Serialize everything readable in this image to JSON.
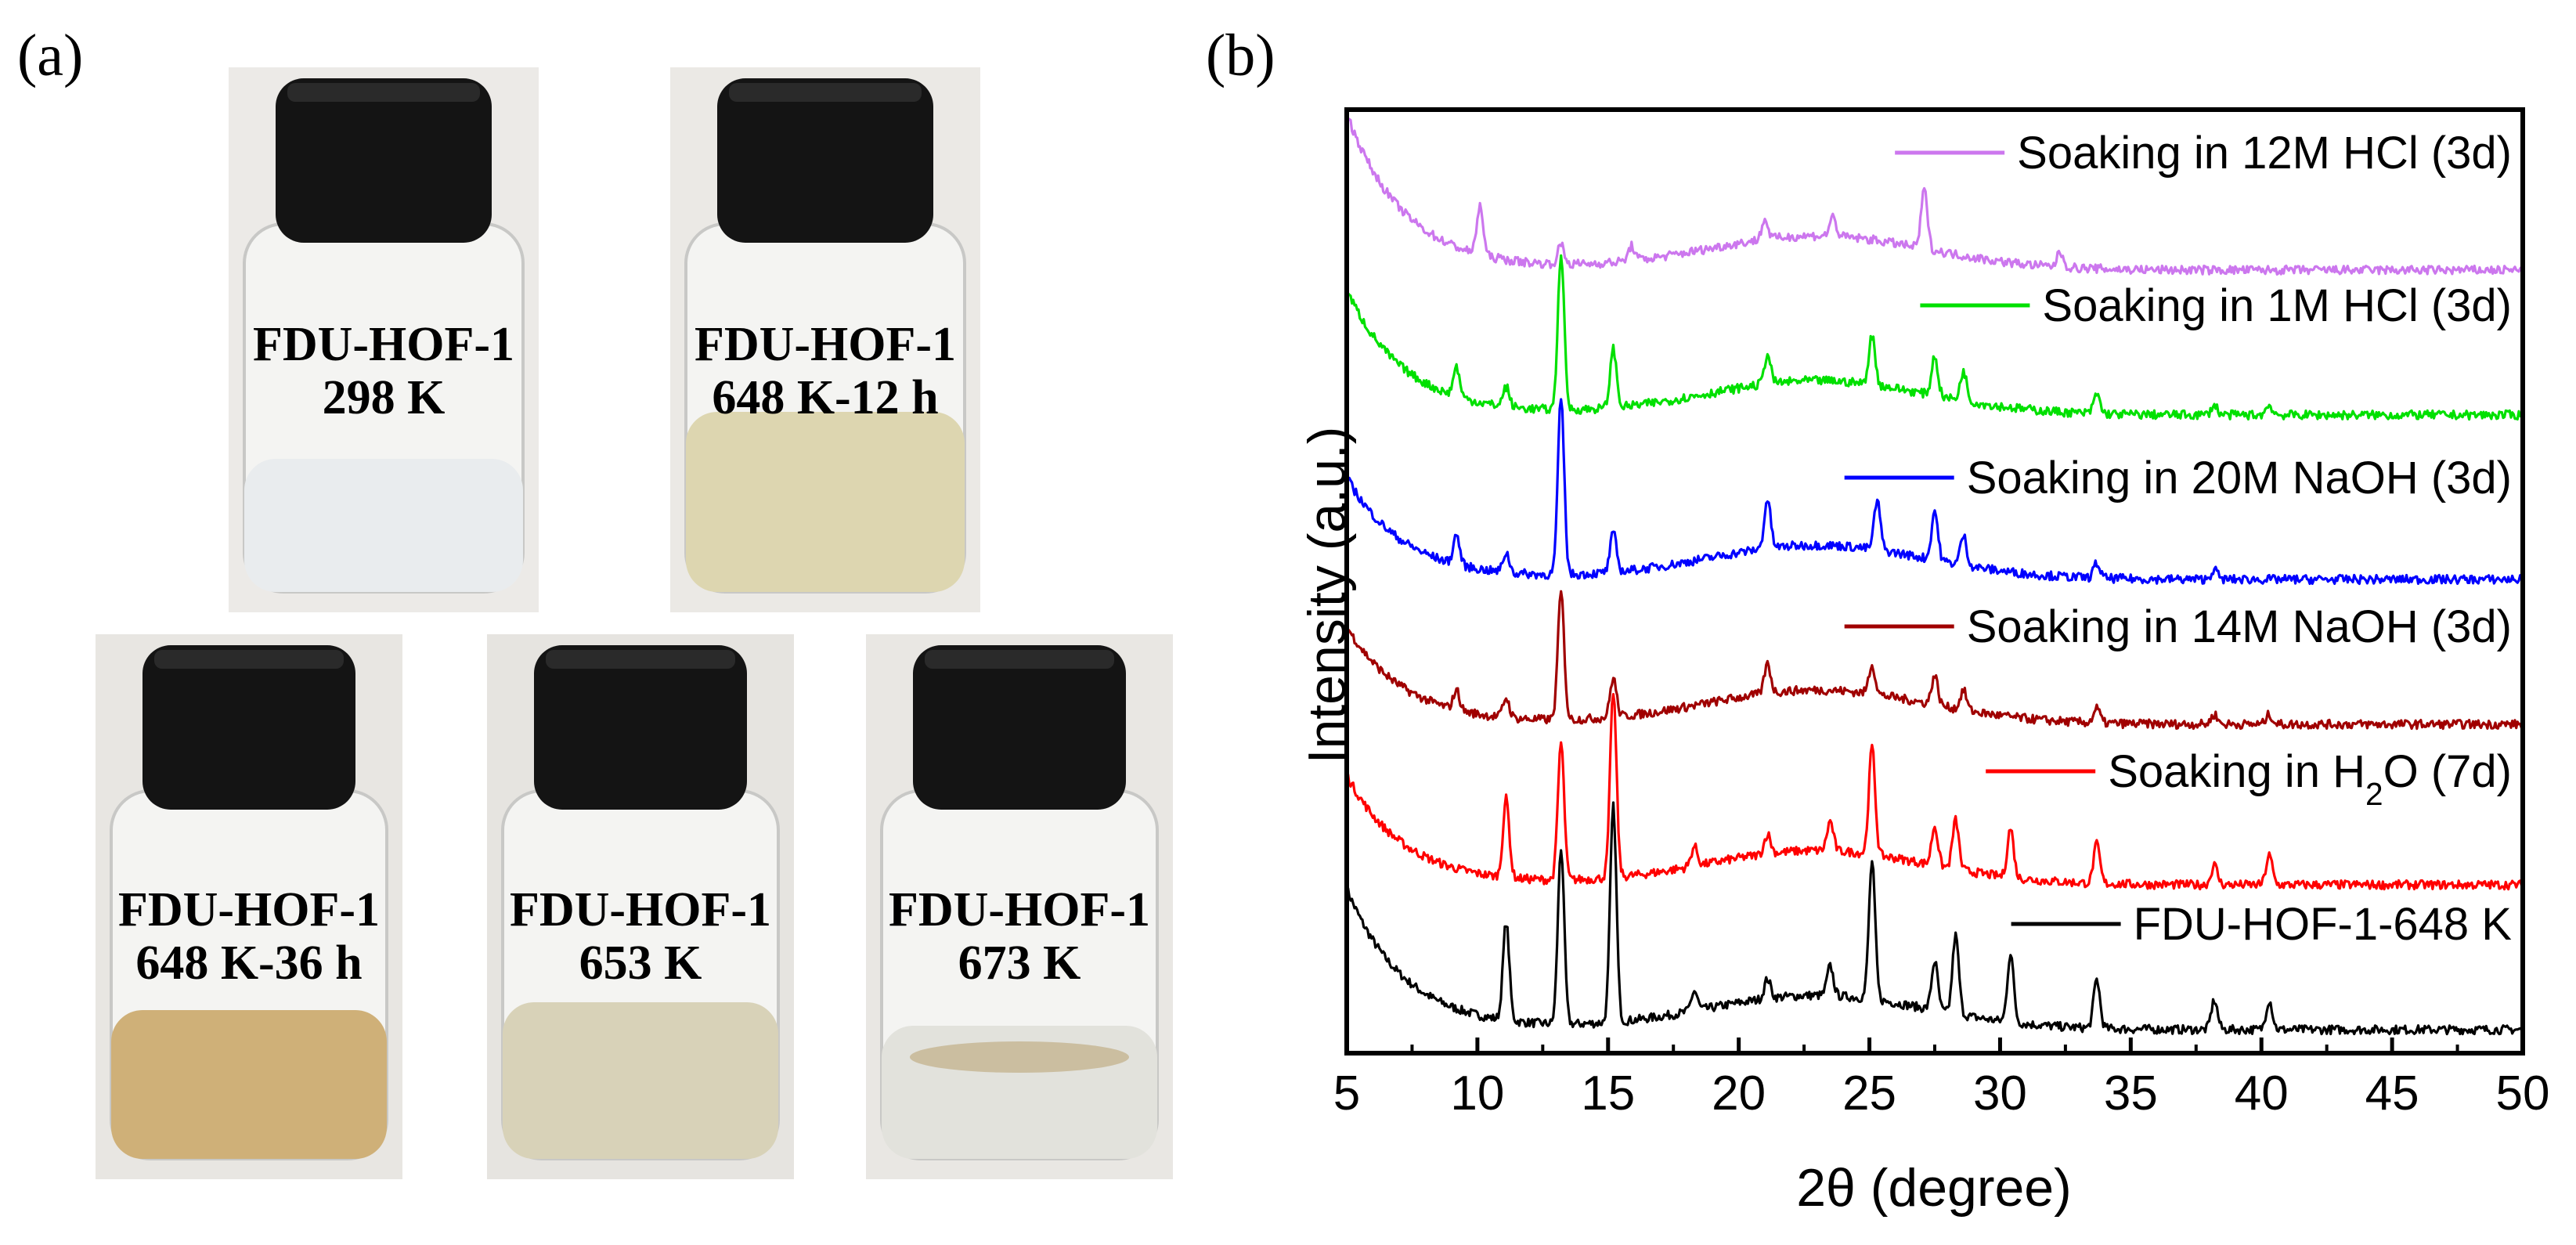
{
  "panels": {
    "a": "(a)",
    "b": "(b)"
  },
  "vials": [
    {
      "line1": "FDU-HOF-1",
      "line2": "298 K",
      "liquid": "#e9ecee",
      "bg": "#eceae7"
    },
    {
      "line1": "FDU-HOF-1",
      "line2": "648 K-12 h",
      "liquid": "#ddd6b0",
      "bg": "#ebe9e5"
    },
    {
      "line1": "FDU-HOF-1",
      "line2": "648 K-36 h",
      "liquid": "#cfb078",
      "bg": "#e8e6e2"
    },
    {
      "line1": "FDU-HOF-1",
      "line2": "653 K",
      "liquid": "#d8d2b8",
      "bg": "#e6e4e0"
    },
    {
      "line1": "FDU-HOF-1",
      "line2": "673 K",
      "liquid": "#e2e2dc",
      "bg": "#e9e7e3"
    }
  ],
  "chart_data": {
    "type": "line",
    "xlabel": "2θ (degree)",
    "ylabel": "Intensity (a.u.)",
    "xlim": [
      5,
      50
    ],
    "xticks": [
      5,
      10,
      15,
      20,
      25,
      30,
      35,
      40,
      45,
      50
    ],
    "grid": false,
    "legend_placement": "inline-right",
    "series": [
      {
        "name": "FDU-HOF-1-648 K",
        "name_html": "FDU-HOF-1-648 K",
        "color": "#000000",
        "peaks": [
          [
            11.1,
            1.0
          ],
          [
            13.2,
            1.8
          ],
          [
            15.2,
            2.2
          ],
          [
            18.3,
            0.2
          ],
          [
            21.1,
            0.2
          ],
          [
            23.5,
            0.3
          ],
          [
            25.1,
            1.4
          ],
          [
            27.5,
            0.5
          ],
          [
            28.3,
            0.8
          ],
          [
            30.4,
            0.7
          ],
          [
            33.7,
            0.5
          ],
          [
            38.2,
            0.3
          ],
          [
            40.3,
            0.3
          ]
        ]
      },
      {
        "name": "Soaking in H2O (7d)",
        "name_html": "Soaking in H<tspan baseline-shift='sub' font-size='70%'>2</tspan>O (7d)",
        "color": "#ff0000",
        "peaks": [
          [
            11.1,
            0.8
          ],
          [
            13.2,
            1.4
          ],
          [
            15.2,
            1.9
          ],
          [
            18.3,
            0.2
          ],
          [
            21.1,
            0.2
          ],
          [
            23.5,
            0.3
          ],
          [
            25.1,
            1.1
          ],
          [
            27.5,
            0.4
          ],
          [
            28.3,
            0.5
          ],
          [
            30.4,
            0.5
          ],
          [
            33.7,
            0.4
          ],
          [
            38.2,
            0.2
          ],
          [
            40.3,
            0.3
          ]
        ]
      },
      {
        "name": "Soaking in 14M NaOH (3d)",
        "name_html": "Soaking in 14M NaOH (3d)",
        "color": "#a00000",
        "peaks": [
          [
            9.2,
            0.2
          ],
          [
            11.1,
            0.2
          ],
          [
            13.2,
            1.3
          ],
          [
            15.2,
            0.4
          ],
          [
            21.1,
            0.3
          ],
          [
            25.1,
            0.3
          ],
          [
            27.5,
            0.3
          ],
          [
            28.6,
            0.2
          ],
          [
            33.7,
            0.15
          ],
          [
            38.2,
            0.1
          ],
          [
            40.3,
            0.1
          ]
        ]
      },
      {
        "name": "Soaking in 20M NaOH (3d)",
        "name_html": "Soaking in 20M NaOH (3d)",
        "color": "#0000ff",
        "peaks": [
          [
            9.2,
            0.3
          ],
          [
            11.1,
            0.2
          ],
          [
            13.2,
            1.8
          ],
          [
            15.2,
            0.4
          ],
          [
            21.1,
            0.5
          ],
          [
            25.3,
            0.5
          ],
          [
            27.5,
            0.5
          ],
          [
            28.6,
            0.3
          ],
          [
            33.7,
            0.15
          ],
          [
            38.2,
            0.1
          ]
        ]
      },
      {
        "name": "Soaking in 1M HCl (3d)",
        "name_html": "Soaking in 1M HCl (3d)",
        "color": "#00e000",
        "peaks": [
          [
            9.2,
            0.3
          ],
          [
            11.1,
            0.2
          ],
          [
            13.2,
            1.6
          ],
          [
            15.2,
            0.6
          ],
          [
            21.1,
            0.3
          ],
          [
            25.1,
            0.5
          ],
          [
            27.5,
            0.4
          ],
          [
            28.6,
            0.3
          ],
          [
            33.7,
            0.2
          ],
          [
            38.2,
            0.1
          ],
          [
            40.3,
            0.1
          ]
        ]
      },
      {
        "name": "Soaking in 12M HCl (3d)",
        "name_html": "Soaking in 12M HCl (3d)",
        "color": "#cc77ee",
        "peaks": [
          [
            10.1,
            0.5
          ],
          [
            13.2,
            0.2
          ],
          [
            15.9,
            0.15
          ],
          [
            21.0,
            0.2
          ],
          [
            23.6,
            0.2
          ],
          [
            27.1,
            0.6
          ],
          [
            32.3,
            0.15
          ]
        ]
      }
    ]
  }
}
